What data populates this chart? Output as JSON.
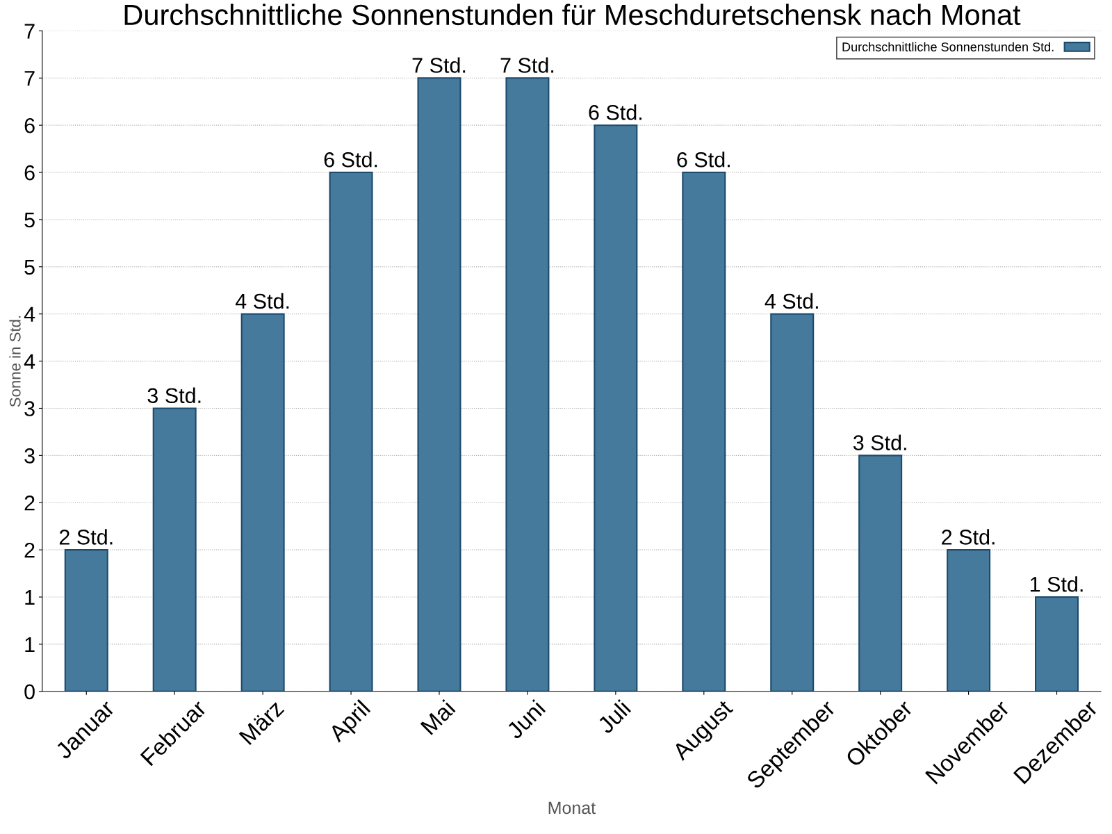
{
  "chart_data": {
    "type": "bar",
    "title": "Durchschnittliche Sonnenstunden für Meschduretschensk nach Monat",
    "xlabel": "Monat",
    "ylabel": "Sonne in Std.",
    "categories": [
      "Januar",
      "Februar",
      "März",
      "April",
      "Mai",
      "Juni",
      "Juli",
      "August",
      "September",
      "Oktober",
      "November",
      "Dezember"
    ],
    "series": [
      {
        "name": "Durchschnittliche Sonnenstunden Std.",
        "color": "#467a9c",
        "values": [
          1.5,
          3.0,
          4.0,
          5.5,
          6.5,
          6.5,
          6.0,
          5.5,
          4.0,
          2.5,
          1.5,
          1.0
        ],
        "value_labels": [
          "2 Std.",
          "3 Std.",
          "4 Std.",
          "6 Std.",
          "7 Std.",
          "7 Std.",
          "6 Std.",
          "6 Std.",
          "4 Std.",
          "3 Std.",
          "2 Std.",
          "1 Std."
        ]
      }
    ],
    "ylim": [
      0,
      7
    ],
    "yticks": [
      0,
      {
        "value": 0.5,
        "label": "1"
      },
      1,
      {
        "value": 1.5,
        "label": "2"
      },
      2,
      {
        "value": 2.5,
        "label": "3"
      },
      3,
      {
        "value": 3.5,
        "label": "4"
      },
      4,
      {
        "value": 4.5,
        "label": "5"
      },
      5,
      {
        "value": 5.5,
        "label": "6"
      },
      6,
      {
        "value": 6.5,
        "label": "7"
      },
      7
    ],
    "grid": "y",
    "legend": "top right"
  }
}
